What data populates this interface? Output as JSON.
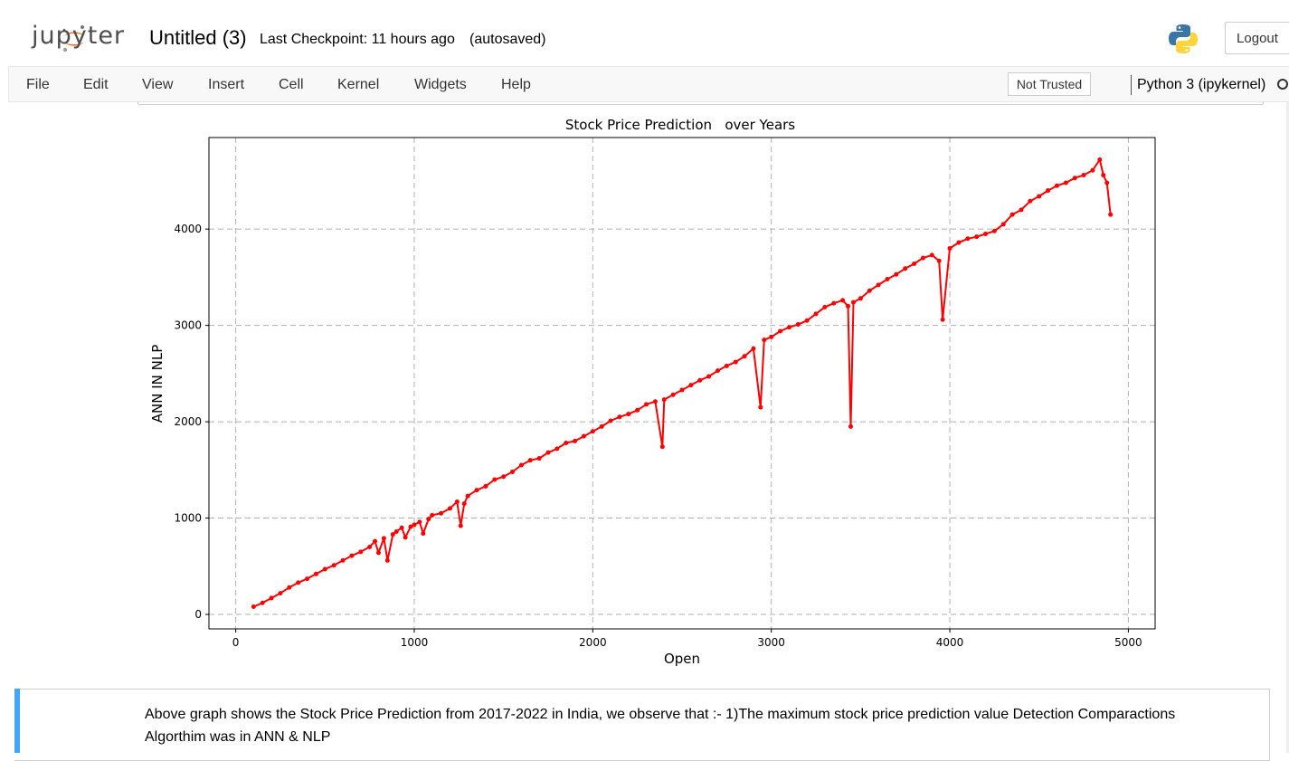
{
  "header": {
    "logo_text": "jupyter",
    "notebook_title": "Untitled (3)",
    "checkpoint": "Last Checkpoint: 11 hours ago",
    "autosave": "(autosaved)",
    "logout_label": "Logout"
  },
  "menubar": {
    "items": [
      "File",
      "Edit",
      "View",
      "Insert",
      "Cell",
      "Kernel",
      "Widgets",
      "Help"
    ],
    "trust_label": "Not Trusted",
    "kernel_name": "Python 3 (ipykernel)"
  },
  "chart_data": {
    "type": "line",
    "title": "Stock Price Prediction   over Years",
    "xlabel": "Open",
    "ylabel": "ANN IN NLP",
    "xlim": [
      -150,
      5150
    ],
    "ylim": [
      -150,
      4950
    ],
    "xticks": [
      0,
      1000,
      2000,
      3000,
      4000,
      5000
    ],
    "yticks": [
      0,
      1000,
      2000,
      3000,
      4000
    ],
    "grid": true,
    "grid_style": "dashed",
    "series": [
      {
        "color": "#ff0000",
        "marker": "dot",
        "x": [
          100,
          150,
          200,
          250,
          300,
          350,
          400,
          450,
          500,
          550,
          600,
          650,
          700,
          750,
          780,
          800,
          830,
          850,
          880,
          900,
          930,
          950,
          980,
          1000,
          1030,
          1050,
          1080,
          1100,
          1150,
          1200,
          1240,
          1260,
          1280,
          1300,
          1350,
          1400,
          1450,
          1500,
          1550,
          1600,
          1650,
          1700,
          1750,
          1800,
          1850,
          1900,
          1950,
          2000,
          2050,
          2100,
          2150,
          2200,
          2250,
          2300,
          2350,
          2390,
          2400,
          2450,
          2500,
          2550,
          2600,
          2650,
          2700,
          2750,
          2800,
          2850,
          2900,
          2940,
          2960,
          3000,
          3050,
          3100,
          3150,
          3200,
          3250,
          3300,
          3350,
          3400,
          3430,
          3445,
          3460,
          3500,
          3550,
          3600,
          3650,
          3700,
          3750,
          3800,
          3850,
          3900,
          3940,
          3960,
          4000,
          4050,
          4100,
          4150,
          4200,
          4250,
          4300,
          4350,
          4400,
          4450,
          4500,
          4550,
          4600,
          4650,
          4700,
          4750,
          4800,
          4840,
          4860,
          4880,
          4900
        ],
        "y": [
          80,
          120,
          170,
          220,
          280,
          330,
          370,
          420,
          470,
          510,
          560,
          610,
          650,
          700,
          760,
          640,
          790,
          560,
          830,
          860,
          900,
          800,
          910,
          930,
          960,
          840,
          990,
          1030,
          1050,
          1100,
          1170,
          920,
          1150,
          1230,
          1290,
          1330,
          1400,
          1430,
          1480,
          1550,
          1600,
          1620,
          1680,
          1720,
          1780,
          1800,
          1850,
          1900,
          1950,
          2010,
          2050,
          2080,
          2120,
          2180,
          2210,
          1740,
          2230,
          2280,
          2330,
          2380,
          2430,
          2470,
          2530,
          2580,
          2620,
          2680,
          2760,
          2150,
          2850,
          2880,
          2940,
          2980,
          3010,
          3050,
          3120,
          3190,
          3230,
          3260,
          3200,
          1950,
          3240,
          3280,
          3360,
          3420,
          3480,
          3530,
          3590,
          3640,
          3700,
          3730,
          3670,
          3060,
          3800,
          3860,
          3900,
          3920,
          3950,
          3980,
          4050,
          4150,
          4200,
          4290,
          4340,
          4400,
          4450,
          4480,
          4530,
          4560,
          4610,
          4720,
          4560,
          4480,
          4150
        ]
      }
    ]
  },
  "markdown_cell": {
    "text": "Above graph shows the Stock Price Prediction from 2017-2022 in India, we observe that :- 1)The maximum stock price prediction value Detection Comparactions Algorthim was in ANN & NLP"
  }
}
